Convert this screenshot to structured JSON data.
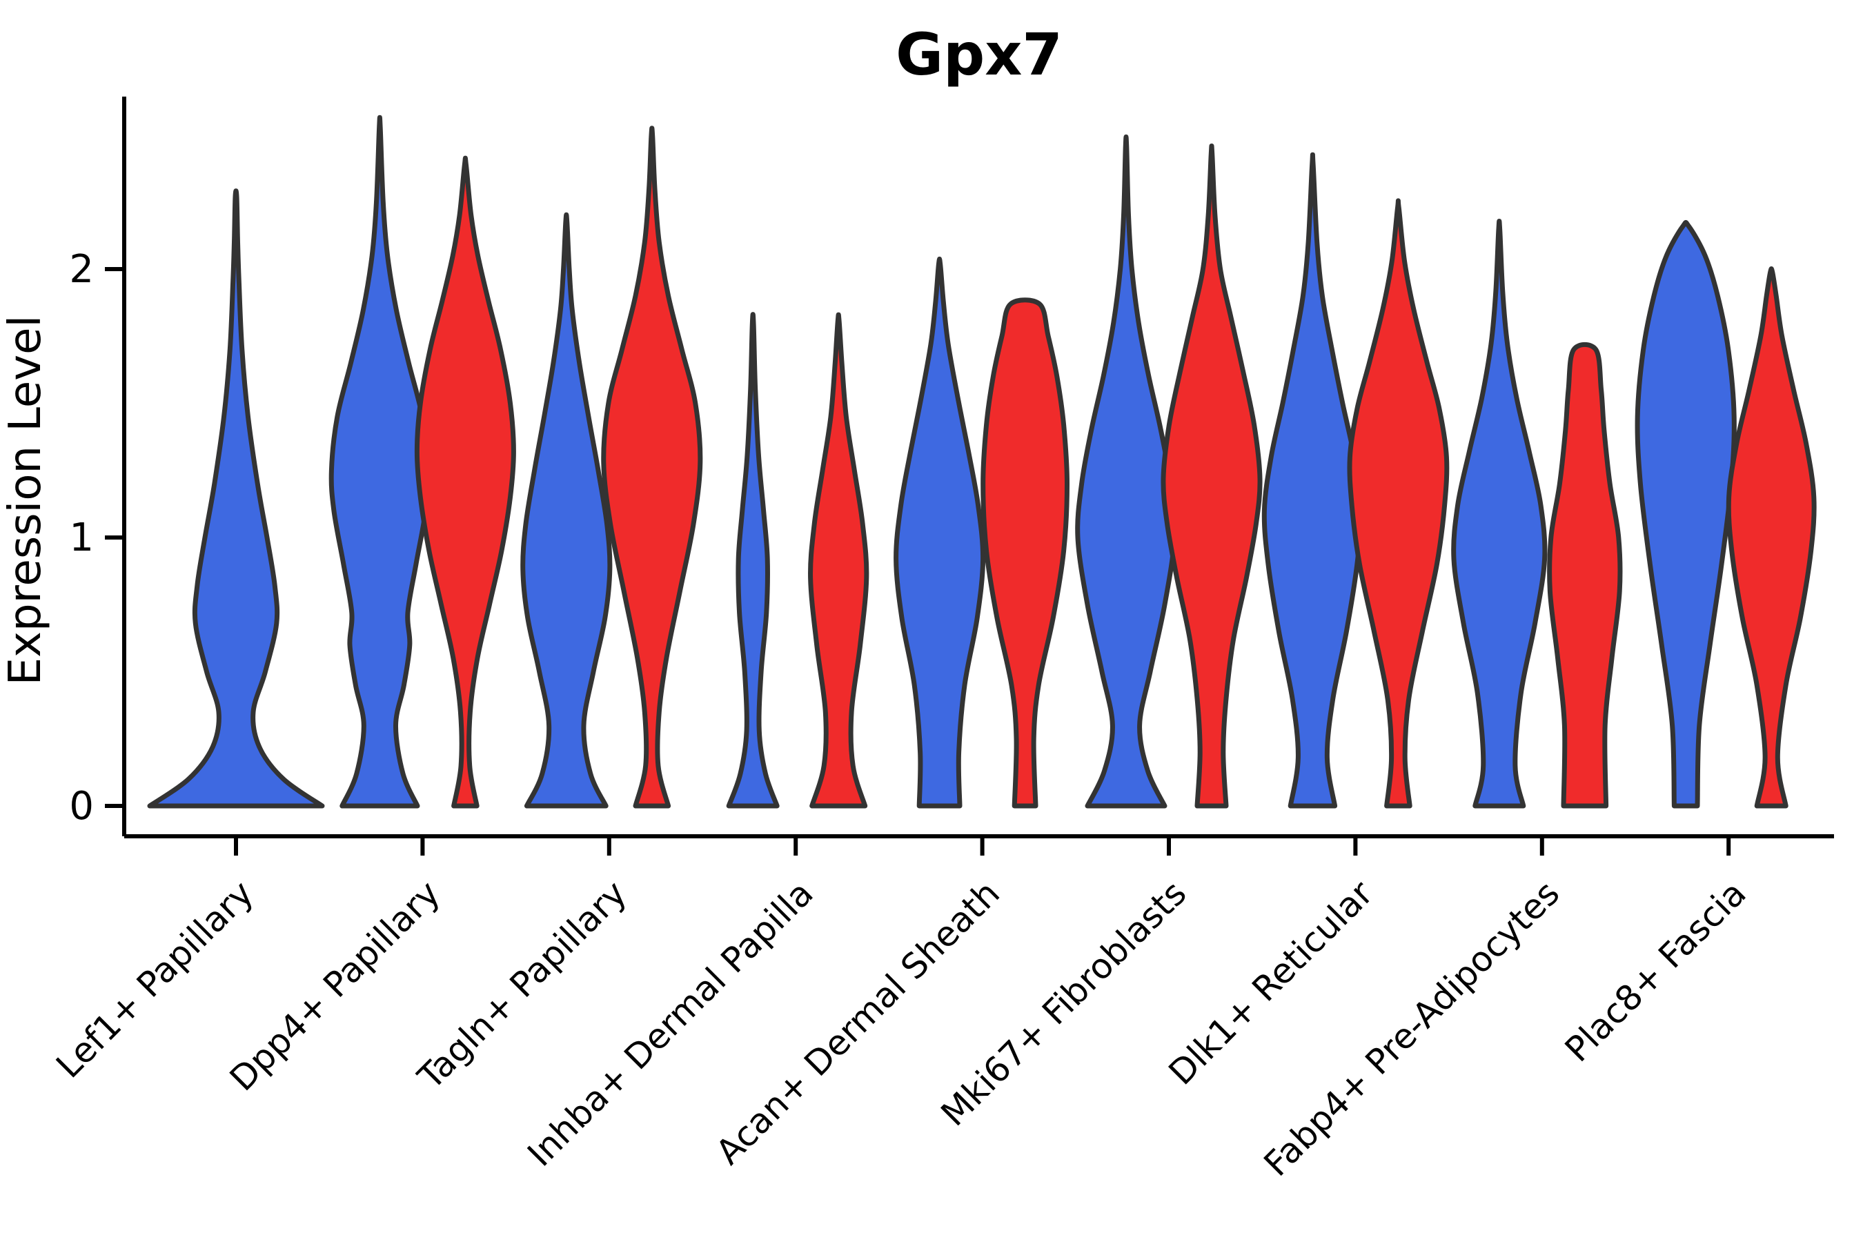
{
  "chart_data": {
    "type": "violin",
    "title": "Gpx7",
    "ylabel": "Expression Level",
    "yticks": [
      0,
      1,
      2
    ],
    "ylim": [
      -0.11,
      2.67
    ],
    "grid": false,
    "legend": "none",
    "categories": [
      "Lef1+ Papillary",
      "Dpp4+ Papillary",
      "Tagln+ Papillary",
      "Inhba+ Dermal Papilla",
      "Acan+ Dermal Sheath",
      "Mki67+ Fibroblasts",
      "Dlk1+ Reticular",
      "Fabp4+ Pre-Adipocytes",
      "Plac8+ Fascia"
    ],
    "groups": [
      {
        "name": "group-blue",
        "color": "#3E69E1"
      },
      {
        "name": "group-red",
        "color": "#F02B2B"
      }
    ],
    "edge_color": "#333333",
    "axis_color": "#000000",
    "violins": [
      {
        "category": "Lef1+ Papillary",
        "group": "group-blue",
        "max": 2.27,
        "half_width": 125,
        "solo": true,
        "profile": [
          [
            0,
            1.0
          ],
          [
            0.1,
            0.55
          ],
          [
            0.22,
            0.27
          ],
          [
            0.35,
            0.2
          ],
          [
            0.5,
            0.34
          ],
          [
            0.68,
            0.47
          ],
          [
            0.82,
            0.45
          ],
          [
            1.0,
            0.36
          ],
          [
            1.2,
            0.25
          ],
          [
            1.45,
            0.14
          ],
          [
            1.7,
            0.07
          ],
          [
            1.95,
            0.035
          ],
          [
            2.1,
            0.02
          ],
          [
            2.27,
            0.008
          ]
        ]
      },
      {
        "category": "Dpp4+ Papillary",
        "group": "group-blue",
        "max": 2.53,
        "half_width": 70,
        "profile": [
          [
            0,
            0.78
          ],
          [
            0.12,
            0.48
          ],
          [
            0.3,
            0.33
          ],
          [
            0.45,
            0.5
          ],
          [
            0.6,
            0.62
          ],
          [
            0.72,
            0.58
          ],
          [
            0.9,
            0.75
          ],
          [
            1.1,
            0.95
          ],
          [
            1.25,
            1.0
          ],
          [
            1.45,
            0.88
          ],
          [
            1.65,
            0.6
          ],
          [
            1.85,
            0.34
          ],
          [
            2.05,
            0.16
          ],
          [
            2.25,
            0.07
          ],
          [
            2.53,
            0.01
          ]
        ]
      },
      {
        "category": "Dpp4+ Papillary",
        "group": "group-red",
        "max": 2.39,
        "half_width": 70,
        "profile": [
          [
            0,
            0.24
          ],
          [
            0.15,
            0.09
          ],
          [
            0.35,
            0.1
          ],
          [
            0.55,
            0.25
          ],
          [
            0.75,
            0.5
          ],
          [
            0.95,
            0.75
          ],
          [
            1.15,
            0.93
          ],
          [
            1.32,
            1.0
          ],
          [
            1.5,
            0.93
          ],
          [
            1.7,
            0.73
          ],
          [
            1.88,
            0.48
          ],
          [
            2.05,
            0.26
          ],
          [
            2.2,
            0.12
          ],
          [
            2.39,
            0.015
          ]
        ]
      },
      {
        "category": "Tagln+ Papillary",
        "group": "group-blue",
        "max": 2.18,
        "half_width": 70,
        "profile": [
          [
            0,
            0.82
          ],
          [
            0.12,
            0.5
          ],
          [
            0.3,
            0.36
          ],
          [
            0.5,
            0.56
          ],
          [
            0.7,
            0.8
          ],
          [
            0.88,
            0.9
          ],
          [
            1.05,
            0.84
          ],
          [
            1.25,
            0.66
          ],
          [
            1.45,
            0.46
          ],
          [
            1.65,
            0.27
          ],
          [
            1.85,
            0.12
          ],
          [
            2.0,
            0.06
          ],
          [
            2.18,
            0.012
          ]
        ]
      },
      {
        "category": "Tagln+ Papillary",
        "group": "group-red",
        "max": 2.5,
        "half_width": 70,
        "profile": [
          [
            0,
            0.34
          ],
          [
            0.15,
            0.13
          ],
          [
            0.35,
            0.15
          ],
          [
            0.55,
            0.3
          ],
          [
            0.8,
            0.58
          ],
          [
            1.05,
            0.86
          ],
          [
            1.28,
            1.0
          ],
          [
            1.5,
            0.9
          ],
          [
            1.7,
            0.62
          ],
          [
            1.9,
            0.34
          ],
          [
            2.1,
            0.15
          ],
          [
            2.3,
            0.06
          ],
          [
            2.5,
            0.012
          ]
        ]
      },
      {
        "category": "Inhba+ Dermal Papilla",
        "group": "group-blue",
        "max": 1.8,
        "half_width": 70,
        "profile": [
          [
            0,
            0.5
          ],
          [
            0.12,
            0.26
          ],
          [
            0.28,
            0.13
          ],
          [
            0.5,
            0.17
          ],
          [
            0.72,
            0.28
          ],
          [
            0.92,
            0.3
          ],
          [
            1.1,
            0.22
          ],
          [
            1.3,
            0.12
          ],
          [
            1.55,
            0.05
          ],
          [
            1.8,
            0.012
          ]
        ]
      },
      {
        "category": "Inhba+ Dermal Papilla",
        "group": "group-red",
        "max": 1.81,
        "half_width": 70,
        "profile": [
          [
            0,
            0.55
          ],
          [
            0.15,
            0.3
          ],
          [
            0.35,
            0.27
          ],
          [
            0.6,
            0.45
          ],
          [
            0.85,
            0.58
          ],
          [
            1.05,
            0.5
          ],
          [
            1.25,
            0.33
          ],
          [
            1.45,
            0.16
          ],
          [
            1.65,
            0.07
          ],
          [
            1.81,
            0.012
          ]
        ]
      },
      {
        "category": "Acan+ Dermal Sheath",
        "group": "group-blue",
        "max": 2.02,
        "half_width": 70,
        "profile": [
          [
            0,
            0.42
          ],
          [
            0.2,
            0.4
          ],
          [
            0.45,
            0.52
          ],
          [
            0.7,
            0.78
          ],
          [
            0.92,
            0.9
          ],
          [
            1.12,
            0.8
          ],
          [
            1.32,
            0.6
          ],
          [
            1.52,
            0.38
          ],
          [
            1.72,
            0.18
          ],
          [
            1.88,
            0.08
          ],
          [
            2.02,
            0.015
          ]
        ]
      },
      {
        "category": "Acan+ Dermal Sheath",
        "group": "group-red",
        "max": 1.87,
        "half_width": 70,
        "flat_top": true,
        "profile": [
          [
            0,
            0.22
          ],
          [
            0.25,
            0.18
          ],
          [
            0.45,
            0.28
          ],
          [
            0.7,
            0.58
          ],
          [
            0.95,
            0.8
          ],
          [
            1.2,
            0.87
          ],
          [
            1.42,
            0.8
          ],
          [
            1.6,
            0.66
          ],
          [
            1.75,
            0.48
          ],
          [
            1.87,
            0.3
          ]
        ]
      },
      {
        "category": "Mki67+ Fibroblasts",
        "group": "group-blue",
        "max": 2.46,
        "half_width": 70,
        "profile": [
          [
            0,
            0.8
          ],
          [
            0.13,
            0.45
          ],
          [
            0.3,
            0.28
          ],
          [
            0.5,
            0.5
          ],
          [
            0.75,
            0.8
          ],
          [
            1.0,
            1.0
          ],
          [
            1.2,
            0.92
          ],
          [
            1.4,
            0.72
          ],
          [
            1.6,
            0.47
          ],
          [
            1.8,
            0.26
          ],
          [
            2.0,
            0.12
          ],
          [
            2.2,
            0.05
          ],
          [
            2.46,
            0.01
          ]
        ]
      },
      {
        "category": "Mki67+ Fibroblasts",
        "group": "group-red",
        "max": 2.43,
        "half_width": 70,
        "profile": [
          [
            0,
            0.3
          ],
          [
            0.2,
            0.24
          ],
          [
            0.4,
            0.3
          ],
          [
            0.62,
            0.45
          ],
          [
            0.85,
            0.72
          ],
          [
            1.05,
            0.92
          ],
          [
            1.22,
            1.0
          ],
          [
            1.42,
            0.88
          ],
          [
            1.62,
            0.65
          ],
          [
            1.82,
            0.4
          ],
          [
            2.0,
            0.18
          ],
          [
            2.2,
            0.07
          ],
          [
            2.43,
            0.01
          ]
        ]
      },
      {
        "category": "Dlk1+ Reticular",
        "group": "group-blue",
        "max": 2.39,
        "half_width": 70,
        "profile": [
          [
            0,
            0.46
          ],
          [
            0.18,
            0.3
          ],
          [
            0.4,
            0.42
          ],
          [
            0.65,
            0.7
          ],
          [
            0.9,
            0.92
          ],
          [
            1.1,
            1.0
          ],
          [
            1.3,
            0.86
          ],
          [
            1.5,
            0.62
          ],
          [
            1.7,
            0.4
          ],
          [
            1.9,
            0.2
          ],
          [
            2.1,
            0.09
          ],
          [
            2.39,
            0.01
          ]
        ]
      },
      {
        "category": "Dlk1+ Reticular",
        "group": "group-red",
        "max": 2.23,
        "half_width": 70,
        "profile": [
          [
            0,
            0.24
          ],
          [
            0.18,
            0.14
          ],
          [
            0.4,
            0.22
          ],
          [
            0.65,
            0.5
          ],
          [
            0.9,
            0.8
          ],
          [
            1.12,
            0.96
          ],
          [
            1.3,
            1.0
          ],
          [
            1.48,
            0.85
          ],
          [
            1.65,
            0.6
          ],
          [
            1.85,
            0.32
          ],
          [
            2.03,
            0.13
          ],
          [
            2.23,
            0.012
          ]
        ]
      },
      {
        "category": "Fabp4+ Pre-Adipocytes",
        "group": "group-blue",
        "max": 2.15,
        "half_width": 70,
        "profile": [
          [
            0,
            0.5
          ],
          [
            0.15,
            0.33
          ],
          [
            0.42,
            0.45
          ],
          [
            0.68,
            0.74
          ],
          [
            0.92,
            0.94
          ],
          [
            1.12,
            0.86
          ],
          [
            1.32,
            0.62
          ],
          [
            1.52,
            0.36
          ],
          [
            1.72,
            0.17
          ],
          [
            1.92,
            0.07
          ],
          [
            2.15,
            0.012
          ]
        ]
      },
      {
        "category": "Fabp4+ Pre-Adipocytes",
        "group": "group-red",
        "max": 1.7,
        "half_width": 70,
        "flat_top": true,
        "profile": [
          [
            0,
            0.44
          ],
          [
            0.3,
            0.42
          ],
          [
            0.55,
            0.56
          ],
          [
            0.8,
            0.72
          ],
          [
            1.0,
            0.7
          ],
          [
            1.2,
            0.52
          ],
          [
            1.4,
            0.4
          ],
          [
            1.55,
            0.34
          ],
          [
            1.7,
            0.23
          ]
        ]
      },
      {
        "category": "Plac8+ Fascia",
        "group": "group-blue",
        "max": 2.16,
        "half_width": 70,
        "profile": [
          [
            0,
            0.24
          ],
          [
            0.3,
            0.28
          ],
          [
            0.6,
            0.5
          ],
          [
            0.9,
            0.74
          ],
          [
            1.2,
            0.94
          ],
          [
            1.45,
            1.0
          ],
          [
            1.7,
            0.88
          ],
          [
            1.9,
            0.66
          ],
          [
            2.05,
            0.4
          ],
          [
            2.16,
            0.06
          ]
        ]
      },
      {
        "category": "Plac8+ Fascia",
        "group": "group-red",
        "max": 1.99,
        "half_width": 70,
        "profile": [
          [
            0,
            0.3
          ],
          [
            0.18,
            0.13
          ],
          [
            0.45,
            0.3
          ],
          [
            0.7,
            0.6
          ],
          [
            0.95,
            0.82
          ],
          [
            1.15,
            0.88
          ],
          [
            1.35,
            0.72
          ],
          [
            1.55,
            0.46
          ],
          [
            1.75,
            0.22
          ],
          [
            1.9,
            0.1
          ],
          [
            1.99,
            0.02
          ]
        ]
      }
    ]
  }
}
